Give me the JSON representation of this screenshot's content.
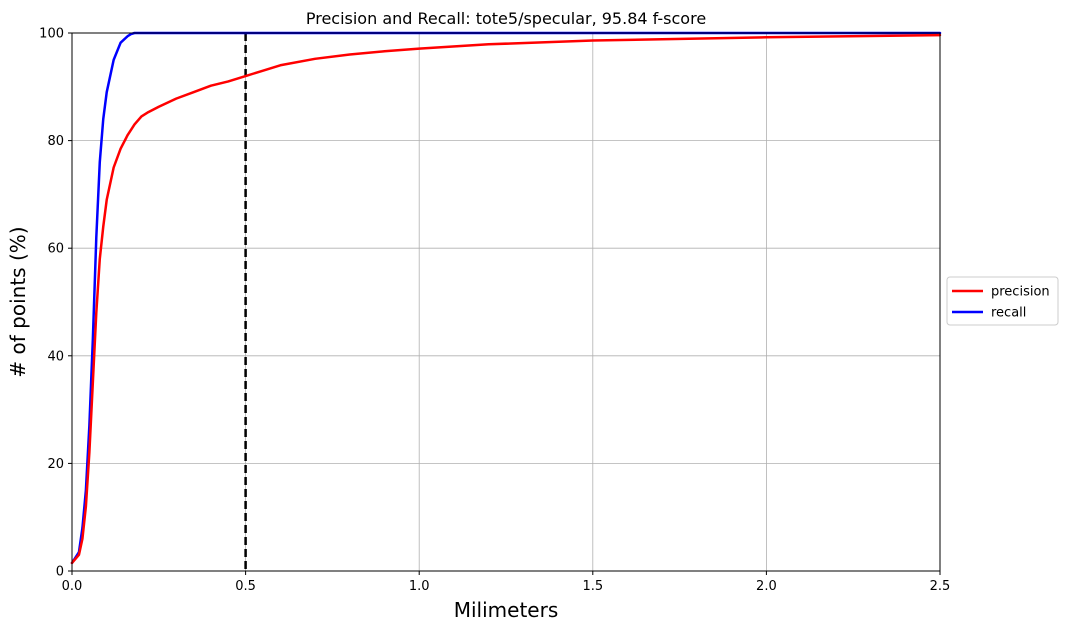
{
  "chart_data": {
    "type": "line",
    "title": "Precision and Recall: tote5/specular, 95.84 f-score",
    "xlabel": "Milimeters",
    "ylabel": "# of points (%)",
    "xlim": [
      0.0,
      2.5
    ],
    "ylim": [
      0,
      100
    ],
    "x_ticks": [
      "0.0",
      "0.5",
      "1.0",
      "1.5",
      "2.0",
      "2.5"
    ],
    "y_ticks": [
      "0",
      "20",
      "40",
      "60",
      "80",
      "100"
    ],
    "grid": true,
    "legend_position": "center-right, outside plot",
    "threshold": {
      "x": 0.5,
      "style": "dashed",
      "color": "#000000"
    },
    "series": [
      {
        "name": "precision",
        "color": "#ff0000",
        "x": [
          0.0,
          0.02,
          0.03,
          0.04,
          0.05,
          0.06,
          0.07,
          0.08,
          0.09,
          0.1,
          0.12,
          0.14,
          0.16,
          0.18,
          0.2,
          0.22,
          0.25,
          0.3,
          0.35,
          0.4,
          0.45,
          0.5,
          0.55,
          0.6,
          0.7,
          0.8,
          0.9,
          1.0,
          1.2,
          1.5,
          2.0,
          2.5
        ],
        "values": [
          1.5,
          3,
          6,
          12,
          22,
          35,
          48,
          58,
          64,
          69,
          75,
          78.5,
          81,
          83,
          84.5,
          85.3,
          86.3,
          87.8,
          89,
          90.2,
          91,
          92,
          93,
          94,
          95.2,
          96,
          96.6,
          97.1,
          97.9,
          98.6,
          99.2,
          99.6
        ]
      },
      {
        "name": "recall",
        "color": "#0000ff",
        "x": [
          0.0,
          0.02,
          0.03,
          0.04,
          0.05,
          0.06,
          0.07,
          0.08,
          0.09,
          0.1,
          0.12,
          0.14,
          0.16,
          0.17,
          0.18,
          0.2,
          0.3,
          2.5
        ],
        "values": [
          1.5,
          3.5,
          8,
          15,
          27,
          43,
          62,
          76,
          84,
          89,
          95,
          98.2,
          99.4,
          99.8,
          100,
          100,
          100,
          100
        ]
      }
    ]
  }
}
